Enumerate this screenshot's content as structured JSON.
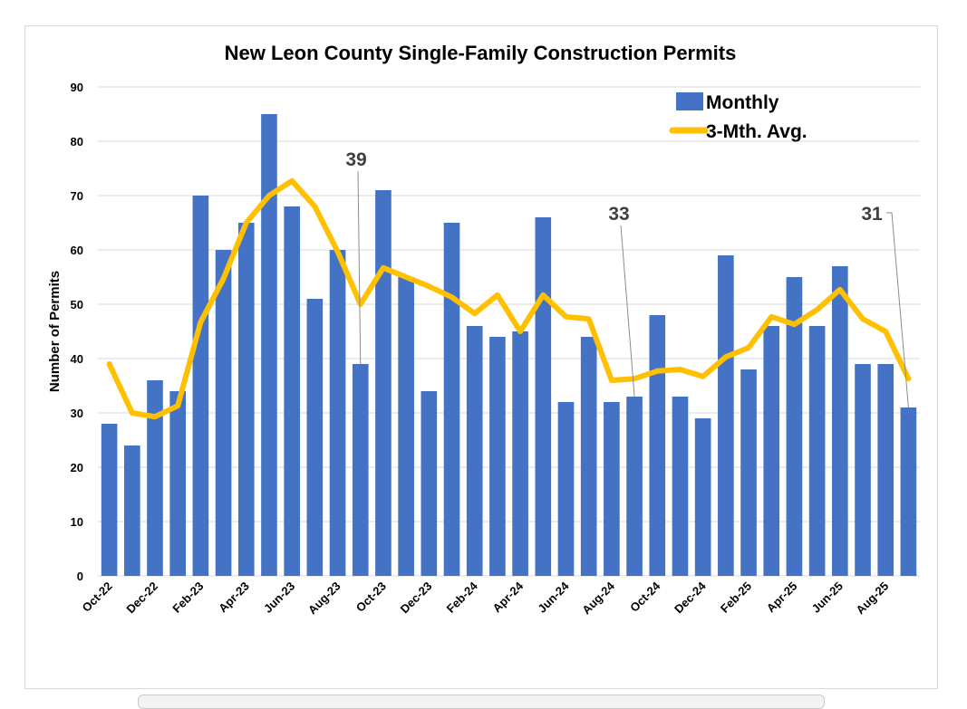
{
  "chart_data": {
    "type": "bar",
    "title": "New Leon County Single-Family Construction Permits",
    "xlabel": "",
    "ylabel": "Number of Permits",
    "ylim": [
      0,
      90
    ],
    "yticks": [
      0,
      10,
      20,
      30,
      40,
      50,
      60,
      70,
      80,
      90
    ],
    "grid": true,
    "legend_position": "top-right",
    "categories": [
      "Oct-22",
      "Nov-22",
      "Dec-22",
      "Jan-23",
      "Feb-23",
      "Mar-23",
      "Apr-23",
      "May-23",
      "Jun-23",
      "Jul-23",
      "Aug-23",
      "Sep-23",
      "Oct-23",
      "Nov-23",
      "Dec-23",
      "Jan-24",
      "Feb-24",
      "Mar-24",
      "Apr-24",
      "May-24",
      "Jun-24",
      "Jul-24",
      "Aug-24",
      "Sep-24",
      "Oct-24",
      "Nov-24",
      "Dec-24",
      "Jan-25",
      "Feb-25",
      "Mar-25",
      "Apr-25",
      "May-25",
      "Jun-25",
      "Jul-25",
      "Aug-25",
      "Sep-25"
    ],
    "tick_labels": [
      "Oct-22",
      "Dec-22",
      "Feb-23",
      "Apr-23",
      "Jun-23",
      "Aug-23",
      "Oct-23",
      "Dec-23",
      "Feb-24",
      "Apr-24",
      "Jun-24",
      "Aug-24",
      "Oct-24",
      "Dec-24",
      "Feb-25",
      "Apr-25",
      "Jun-25",
      "Aug-25"
    ],
    "series": [
      {
        "name": "Monthly",
        "type": "bar",
        "color": "#4472C4",
        "values": [
          28,
          24,
          36,
          34,
          70,
          60,
          65,
          85,
          68,
          51,
          60,
          39,
          71,
          55,
          34,
          65,
          46,
          44,
          45,
          66,
          32,
          44,
          32,
          33,
          48,
          33,
          29,
          59,
          38,
          46,
          55,
          46,
          57,
          39,
          39,
          31
        ]
      },
      {
        "name": "3-Mth. Avg.",
        "type": "line",
        "color": "#FFC000",
        "values": [
          39,
          30,
          29.3,
          31.3,
          46.7,
          54.7,
          65,
          70,
          72.7,
          68,
          59.7,
          50,
          56.7,
          55,
          53.3,
          51.3,
          48.3,
          51.7,
          45,
          51.7,
          47.7,
          47.3,
          36,
          36.3,
          37.7,
          38,
          36.7,
          40.3,
          42,
          47.7,
          46.3,
          49,
          52.7,
          47.3,
          45,
          36.3
        ]
      }
    ],
    "annotations": [
      {
        "text": "39",
        "category": "Sep-23",
        "value": 39
      },
      {
        "text": "33",
        "category": "Sep-24",
        "value": 33
      },
      {
        "text": "31",
        "category": "Sep-25",
        "value": 31
      }
    ]
  }
}
